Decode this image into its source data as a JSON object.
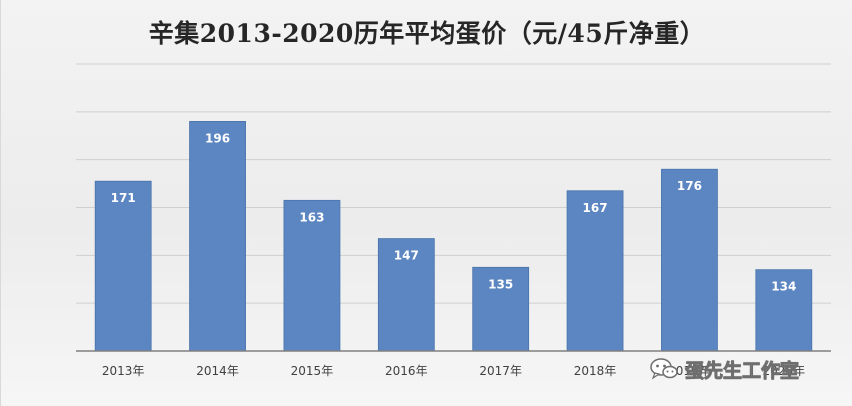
{
  "chart_data": {
    "type": "bar",
    "title": "辛集2013-2020历年平均蛋价（元/45斤净重）",
    "categories": [
      "2013年",
      "2014年",
      "2015年",
      "2016年",
      "2017年",
      "2018年",
      "2019年",
      "2020年"
    ],
    "series": [
      {
        "values": [
          171,
          196,
          163,
          147,
          135,
          167,
          176,
          134
        ]
      }
    ],
    "ylim": [
      100,
      220
    ],
    "grid": true,
    "data_labels": true,
    "bar_color": "#5b86c1",
    "label_color": "#ffffff"
  },
  "watermark": {
    "text": "蛋先生工作室",
    "icon": "wechat-icon"
  }
}
